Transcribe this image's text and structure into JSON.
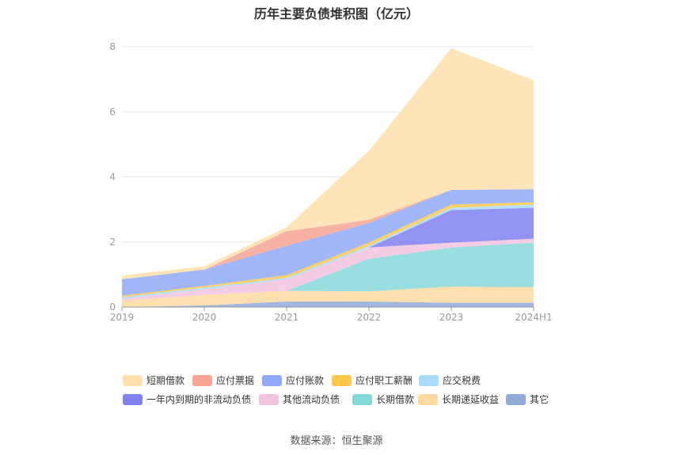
{
  "title": "历年主要负债堆积图（亿元）",
  "source": "数据来源：恒生聚源",
  "chart_data": {
    "type": "area",
    "stacked": true,
    "categories": [
      "2019",
      "2020",
      "2021",
      "2022",
      "2023",
      "2024H1"
    ],
    "ylim": [
      0,
      8
    ],
    "yticks": [
      0,
      2,
      4,
      6,
      8
    ],
    "grid": true,
    "legend_position": "bottom",
    "series": [
      {
        "name": "其它",
        "color": "#8fabd8",
        "values": [
          0.0,
          0.05,
          0.17,
          0.17,
          0.13,
          0.13
        ]
      },
      {
        "name": "长期递延收益",
        "color": "#ffd9a0",
        "values": [
          0.2,
          0.32,
          0.33,
          0.31,
          0.5,
          0.48
        ]
      },
      {
        "name": "长期借款",
        "color": "#86d8d8",
        "values": [
          0.0,
          0.0,
          0.0,
          1.0,
          1.2,
          1.37
        ]
      },
      {
        "name": "其他流动负债",
        "color": "#f2c4e0",
        "values": [
          0.05,
          0.18,
          0.35,
          0.35,
          0.15,
          0.12
        ]
      },
      {
        "name": "一年内到期的非流动负债",
        "color": "#8080f0",
        "values": [
          0.0,
          0.0,
          0.0,
          0.0,
          1.0,
          0.95
        ]
      },
      {
        "name": "应交税费",
        "color": "#a8dcfc",
        "values": [
          0.05,
          0.05,
          0.05,
          0.05,
          0.07,
          0.1
        ]
      },
      {
        "name": "应付职工薪酬",
        "color": "#ffc84a",
        "values": [
          0.05,
          0.05,
          0.08,
          0.1,
          0.1,
          0.07
        ]
      },
      {
        "name": "应付账款",
        "color": "#8fa9f8",
        "values": [
          0.5,
          0.5,
          0.9,
          0.6,
          0.45,
          0.4
        ]
      },
      {
        "name": "应付票据",
        "color": "#f7a594",
        "values": [
          0.0,
          0.0,
          0.45,
          0.1,
          0.0,
          0.0
        ]
      },
      {
        "name": "短期借款",
        "color": "#ffdfac",
        "values": [
          0.12,
          0.1,
          0.12,
          2.12,
          4.35,
          3.35
        ]
      }
    ]
  },
  "legend_order": [
    "短期借款",
    "应付票据",
    "应付账款",
    "应付职工薪酬",
    "应交税费",
    "一年内到期的非流动负债",
    "其他流动负债",
    "长期借款",
    "长期递延收益",
    "其它"
  ]
}
